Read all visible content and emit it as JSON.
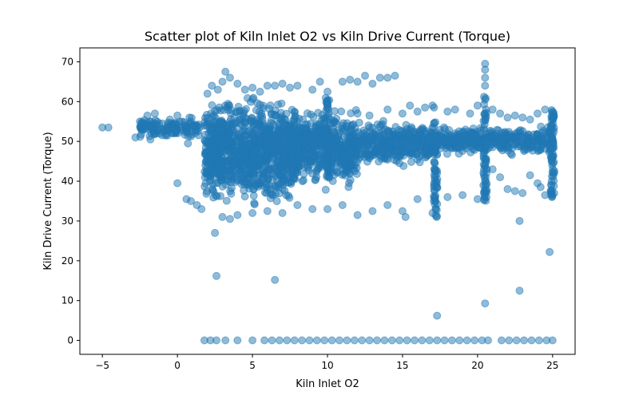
{
  "chart_data": {
    "type": "scatter",
    "title": "Scatter plot of Kiln Inlet O2 vs Kiln Drive Current (Torque)",
    "xlabel": "Kiln Inlet O2",
    "ylabel": "Kiln Drive Current (Torque)",
    "xlim": [
      -6.5,
      26.5
    ],
    "ylim": [
      -3.5,
      73.5
    ],
    "xticks": [
      -5,
      0,
      5,
      10,
      15,
      20,
      25
    ],
    "xtick_labels": [
      "−5",
      "0",
      "5",
      "10",
      "15",
      "20",
      "25"
    ],
    "yticks": [
      0,
      10,
      20,
      30,
      40,
      50,
      60,
      70
    ],
    "ytick_labels": [
      "0",
      "10",
      "20",
      "30",
      "40",
      "50",
      "60",
      "70"
    ],
    "grid": false,
    "legend": "none",
    "marker_color": "#1f77b4",
    "marker_alpha": 0.5,
    "points": [
      {
        "x": -5.0,
        "y": 53.5
      },
      {
        "x": -4.6,
        "y": 53.5
      },
      {
        "x": -2.8,
        "y": 51.0
      },
      {
        "x": -2.5,
        "y": 55.0
      },
      {
        "x": -2.2,
        "y": 53.0
      },
      {
        "x": -2.0,
        "y": 56.5
      },
      {
        "x": -1.8,
        "y": 50.5
      },
      {
        "x": -1.5,
        "y": 57.0
      },
      {
        "x": -1.2,
        "y": 52.0
      },
      {
        "x": -1.0,
        "y": 54.5
      },
      {
        "x": -0.8,
        "y": 51.5
      },
      {
        "x": -0.5,
        "y": 55.5
      },
      {
        "x": -0.2,
        "y": 53.0
      },
      {
        "x": 0.0,
        "y": 56.5
      },
      {
        "x": 0.3,
        "y": 55.0
      },
      {
        "x": 0.6,
        "y": 52.5
      },
      {
        "x": 0.8,
        "y": 56.0
      },
      {
        "x": 0.7,
        "y": 49.5
      },
      {
        "x": 1.1,
        "y": 54.0
      },
      {
        "x": 0.0,
        "y": 39.5
      },
      {
        "x": 0.6,
        "y": 35.5
      },
      {
        "x": 0.9,
        "y": 35.0
      },
      {
        "x": 1.3,
        "y": 34.0
      },
      {
        "x": 1.6,
        "y": 33.0
      },
      {
        "x": 2.0,
        "y": 62.0
      },
      {
        "x": 2.3,
        "y": 64.0
      },
      {
        "x": 2.7,
        "y": 63.0
      },
      {
        "x": 3.0,
        "y": 65.0
      },
      {
        "x": 3.2,
        "y": 67.5
      },
      {
        "x": 3.5,
        "y": 66.0
      },
      {
        "x": 4.0,
        "y": 64.5
      },
      {
        "x": 4.5,
        "y": 63.0
      },
      {
        "x": 5.0,
        "y": 63.5
      },
      {
        "x": 5.5,
        "y": 62.5
      },
      {
        "x": 6.0,
        "y": 64.0
      },
      {
        "x": 6.5,
        "y": 64.0
      },
      {
        "x": 7.0,
        "y": 64.5
      },
      {
        "x": 7.5,
        "y": 63.5
      },
      {
        "x": 8.0,
        "y": 64.0
      },
      {
        "x": 9.0,
        "y": 63.0
      },
      {
        "x": 9.5,
        "y": 65.0
      },
      {
        "x": 10.0,
        "y": 62.5
      },
      {
        "x": 11.0,
        "y": 65.0
      },
      {
        "x": 11.5,
        "y": 65.5
      },
      {
        "x": 12.0,
        "y": 65.0
      },
      {
        "x": 12.5,
        "y": 66.5
      },
      {
        "x": 13.0,
        "y": 64.5
      },
      {
        "x": 13.5,
        "y": 66.0
      },
      {
        "x": 14.0,
        "y": 66.0
      },
      {
        "x": 14.5,
        "y": 66.5
      },
      {
        "x": 2.5,
        "y": 27.0
      },
      {
        "x": 2.6,
        "y": 16.2
      },
      {
        "x": 6.5,
        "y": 15.2
      },
      {
        "x": 3.0,
        "y": 31.0
      },
      {
        "x": 3.5,
        "y": 30.5
      },
      {
        "x": 4.0,
        "y": 31.5
      },
      {
        "x": 5.0,
        "y": 32.0
      },
      {
        "x": 6.0,
        "y": 32.5
      },
      {
        "x": 7.0,
        "y": 32.0
      },
      {
        "x": 8.0,
        "y": 34.0
      },
      {
        "x": 9.0,
        "y": 33.0
      },
      {
        "x": 10.0,
        "y": 33.0
      },
      {
        "x": 11.0,
        "y": 34.0
      },
      {
        "x": 12.0,
        "y": 31.5
      },
      {
        "x": 13.0,
        "y": 32.5
      },
      {
        "x": 14.0,
        "y": 34.0
      },
      {
        "x": 15.0,
        "y": 32.5
      },
      {
        "x": 15.2,
        "y": 31.0
      },
      {
        "x": 16.0,
        "y": 35.5
      },
      {
        "x": 17.0,
        "y": 32.0
      },
      {
        "x": 18.0,
        "y": 36.0
      },
      {
        "x": 19.0,
        "y": 36.5
      },
      {
        "x": 20.0,
        "y": 35.5
      },
      {
        "x": 12.0,
        "y": 57.0
      },
      {
        "x": 12.8,
        "y": 56.5
      },
      {
        "x": 14.0,
        "y": 58.0
      },
      {
        "x": 15.0,
        "y": 57.0
      },
      {
        "x": 15.5,
        "y": 59.0
      },
      {
        "x": 16.0,
        "y": 57.5
      },
      {
        "x": 16.5,
        "y": 58.5
      },
      {
        "x": 17.0,
        "y": 59.0
      },
      {
        "x": 18.0,
        "y": 57.5
      },
      {
        "x": 18.5,
        "y": 58.0
      },
      {
        "x": 19.5,
        "y": 57.0
      },
      {
        "x": 20.0,
        "y": 59.0
      },
      {
        "x": 21.0,
        "y": 58.0
      },
      {
        "x": 21.5,
        "y": 57.0
      },
      {
        "x": 22.0,
        "y": 56.0
      },
      {
        "x": 22.5,
        "y": 56.5
      },
      {
        "x": 23.0,
        "y": 56.0
      },
      {
        "x": 23.5,
        "y": 55.5
      },
      {
        "x": 24.0,
        "y": 57.0
      },
      {
        "x": 24.5,
        "y": 58.0
      },
      {
        "x": 25.0,
        "y": 57.5
      },
      {
        "x": 21.0,
        "y": 43.0
      },
      {
        "x": 21.5,
        "y": 41.0
      },
      {
        "x": 22.0,
        "y": 38.0
      },
      {
        "x": 22.5,
        "y": 37.5
      },
      {
        "x": 23.0,
        "y": 37.0
      },
      {
        "x": 23.5,
        "y": 41.5
      },
      {
        "x": 24.0,
        "y": 39.5
      },
      {
        "x": 24.2,
        "y": 38.5
      },
      {
        "x": 24.5,
        "y": 36.5
      },
      {
        "x": 25.0,
        "y": 36.5
      },
      {
        "x": 22.8,
        "y": 30.0
      },
      {
        "x": 22.8,
        "y": 12.5
      },
      {
        "x": 24.8,
        "y": 22.2
      },
      {
        "x": 20.5,
        "y": 9.3
      },
      {
        "x": 17.3,
        "y": 6.2
      },
      {
        "x": 20.5,
        "y": 69.5
      },
      {
        "x": 20.5,
        "y": 68.0
      },
      {
        "x": 20.5,
        "y": 66.0
      },
      {
        "x": 20.5,
        "y": 64.0
      },
      {
        "x": 20.5,
        "y": 60.5
      },
      {
        "x": 20.5,
        "y": 57.0
      },
      {
        "x": 20.5,
        "y": 40.0
      },
      {
        "x": 20.5,
        "y": 38.0
      },
      {
        "x": 17.2,
        "y": 31.5
      },
      {
        "x": 17.2,
        "y": 33.0
      },
      {
        "x": 17.2,
        "y": 35.0
      },
      {
        "x": 17.3,
        "y": 38.5
      },
      {
        "x": 17.3,
        "y": 42.0
      },
      {
        "x": 17.1,
        "y": 58.5
      },
      {
        "x": 1.8,
        "y": 0.0
      },
      {
        "x": 2.2,
        "y": 0.0
      },
      {
        "x": 2.6,
        "y": 0.0
      },
      {
        "x": 3.2,
        "y": 0.0
      },
      {
        "x": 4.0,
        "y": 0.0
      },
      {
        "x": 5.0,
        "y": 0.0
      },
      {
        "x": 5.8,
        "y": 0.0
      },
      {
        "x": 6.3,
        "y": 0.0
      },
      {
        "x": 6.8,
        "y": 0.0
      },
      {
        "x": 7.3,
        "y": 0.0
      },
      {
        "x": 7.8,
        "y": 0.0
      },
      {
        "x": 8.3,
        "y": 0.0
      },
      {
        "x": 8.8,
        "y": 0.0
      },
      {
        "x": 9.3,
        "y": 0.0
      },
      {
        "x": 9.8,
        "y": 0.0
      },
      {
        "x": 10.3,
        "y": 0.0
      },
      {
        "x": 10.8,
        "y": 0.0
      },
      {
        "x": 11.3,
        "y": 0.0
      },
      {
        "x": 11.8,
        "y": 0.0
      },
      {
        "x": 12.3,
        "y": 0.0
      },
      {
        "x": 12.8,
        "y": 0.0
      },
      {
        "x": 13.3,
        "y": 0.0
      },
      {
        "x": 13.8,
        "y": 0.0
      },
      {
        "x": 14.3,
        "y": 0.0
      },
      {
        "x": 14.8,
        "y": 0.0
      },
      {
        "x": 15.3,
        "y": 0.0
      },
      {
        "x": 15.8,
        "y": 0.0
      },
      {
        "x": 16.3,
        "y": 0.0
      },
      {
        "x": 16.8,
        "y": 0.0
      },
      {
        "x": 17.3,
        "y": 0.0
      },
      {
        "x": 17.8,
        "y": 0.0
      },
      {
        "x": 18.3,
        "y": 0.0
      },
      {
        "x": 18.8,
        "y": 0.0
      },
      {
        "x": 19.3,
        "y": 0.0
      },
      {
        "x": 19.8,
        "y": 0.0
      },
      {
        "x": 20.3,
        "y": 0.0
      },
      {
        "x": 20.7,
        "y": 0.0
      },
      {
        "x": 21.6,
        "y": 0.0
      },
      {
        "x": 22.1,
        "y": 0.0
      },
      {
        "x": 22.6,
        "y": 0.0
      },
      {
        "x": 23.1,
        "y": 0.0
      },
      {
        "x": 23.6,
        "y": 0.0
      },
      {
        "x": 24.1,
        "y": 0.0
      },
      {
        "x": 24.6,
        "y": 0.0
      },
      {
        "x": 25.0,
        "y": 0.0
      }
    ],
    "dense_regions": [
      {
        "x_range": [
          1.8,
          8.0
        ],
        "y_range": [
          32.0,
          63.0
        ],
        "count": 1100
      },
      {
        "x_range": [
          8.0,
          12.0
        ],
        "y_range": [
          37.0,
          60.0
        ],
        "count": 500
      },
      {
        "x_range": [
          12.0,
          17.0
        ],
        "y_range": [
          43.0,
          56.0
        ],
        "count": 350
      },
      {
        "x_range": [
          17.0,
          25.0
        ],
        "y_range": [
          46.0,
          54.5
        ],
        "count": 400
      },
      {
        "x_range": [
          -2.5,
          1.5
        ],
        "y_range": [
          50.0,
          56.5
        ],
        "count": 120
      }
    ],
    "vertical_bands": [
      {
        "x": 17.2,
        "y_range": [
          31.0,
          55.0
        ],
        "count": 60
      },
      {
        "x": 20.5,
        "y_range": [
          35.0,
          62.0
        ],
        "count": 60
      },
      {
        "x": 25.0,
        "y_range": [
          36.0,
          58.0
        ],
        "count": 70
      },
      {
        "x": 10.0,
        "y_range": [
          36.0,
          62.0
        ],
        "count": 40
      }
    ]
  }
}
